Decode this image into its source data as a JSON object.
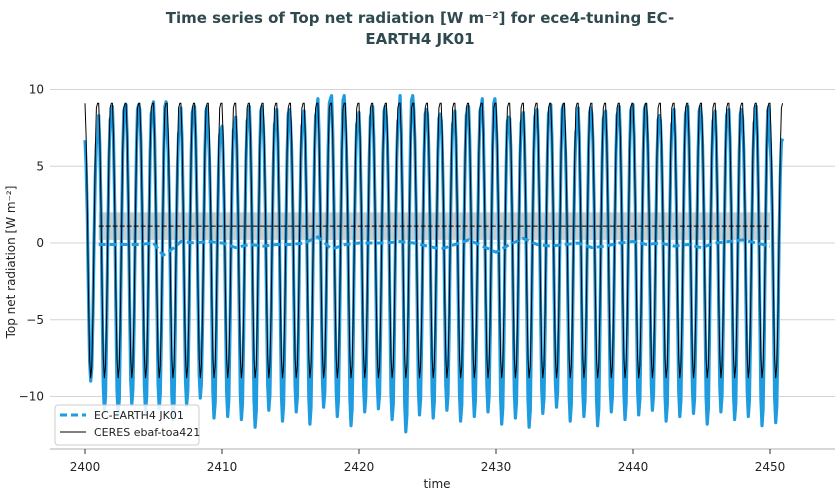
{
  "chart_data": {
    "type": "line",
    "title": "Time series of Top net radiation [W m⁻²] for ece4-tuning EC-EARTH4 JK01",
    "title_line1": "Time series of Top net radiation [W m⁻²] for ece4-tuning EC-",
    "title_line2": "EARTH4 JK01",
    "xlabel": "time",
    "ylabel": "Top net radiation [W m⁻²]",
    "xlim": [
      2397.5,
      2453
    ],
    "ylim": [
      -13.4,
      11
    ],
    "xticks": [
      2400,
      2410,
      2420,
      2430,
      2440,
      2450
    ],
    "xtick_labels": [
      "2400",
      "2410",
      "2420",
      "2430",
      "2440",
      "2450"
    ],
    "yticks": [
      10,
      5,
      0,
      -5,
      -10
    ],
    "ytick_labels": [
      "10",
      "5",
      "0",
      "−5",
      "−10"
    ],
    "grid": "horizontal",
    "legend_position": "bottom-left",
    "legend": [
      "EC-EARTH4 JK01",
      "CERES ebaf-toa421"
    ],
    "colors": {
      "model": "#1f9be0",
      "ceres": "#000000",
      "ceres_band": "#cccccc",
      "title": "#2f4a4f"
    },
    "monthly_climatology_ceres": [
      9.1,
      7.0,
      2.5,
      -3.0,
      -7.5,
      -8.8,
      -8.0,
      -4.5,
      0.5,
      6.0,
      8.8,
      9.1
    ],
    "series": [
      {
        "name": "EC-EARTH4 JK01",
        "style": "monthly solid + annual running mean dashed",
        "years": [
          2400,
          2401,
          2402,
          2403,
          2404,
          2405,
          2406,
          2407,
          2408,
          2409,
          2410,
          2411,
          2412,
          2413,
          2414,
          2415,
          2416,
          2417,
          2418,
          2419,
          2420,
          2421,
          2422,
          2423,
          2424,
          2425,
          2426,
          2427,
          2428,
          2429,
          2430,
          2431,
          2432,
          2433,
          2434,
          2435,
          2436,
          2437,
          2438,
          2439,
          2440,
          2441,
          2442,
          2443,
          2444,
          2445,
          2446,
          2447,
          2448,
          2449,
          2450
        ],
        "annual_max": [
          6.7,
          8.3,
          8.9,
          9.0,
          8.7,
          9.2,
          7.4,
          8.8,
          8.9,
          7.3,
          7.6,
          8.2,
          8.9,
          8.0,
          8.7,
          7.9,
          8.6,
          9.4,
          9.6,
          8.0,
          8.5,
          8.9,
          8.2,
          9.6,
          8.7,
          8.4,
          8.0,
          8.6,
          8.9,
          9.4,
          8.2,
          8.1,
          8.5,
          8.7,
          9.0,
          7.5,
          8.8,
          8.4,
          8.6,
          8.9,
          9.0,
          8.3,
          8.0,
          8.7,
          8.9,
          8.2,
          8.6,
          8.7,
          8.1,
          8.9,
          6.8
        ],
        "annual_min": [
          -9.0,
          -11.0,
          -11.2,
          -10.5,
          -11.0,
          -10.8,
          -11.5,
          -10.6,
          -10.1,
          -11.4,
          -11.3,
          -11.5,
          -12.0,
          -10.9,
          -11.6,
          -11.0,
          -11.8,
          -10.7,
          -11.3,
          -11.9,
          -11.0,
          -10.8,
          -11.5,
          -12.3,
          -11.2,
          -11.4,
          -10.9,
          -11.6,
          -11.3,
          -11.0,
          -11.8,
          -11.4,
          -12.0,
          -11.1,
          -10.7,
          -11.6,
          -11.3,
          -11.9,
          -11.0,
          -11.5,
          -11.2,
          -10.9,
          -11.6,
          -11.3,
          -11.1,
          -11.8,
          -11.0,
          -11.5,
          -11.3,
          -11.9,
          -11.7
        ],
        "running_mean_x": [
          2401,
          2402,
          2403,
          2404,
          2405,
          2405.7,
          2406.5,
          2407,
          2408,
          2409,
          2410,
          2411,
          2412,
          2413,
          2414,
          2415,
          2416,
          2417,
          2418,
          2419,
          2420,
          2421,
          2422,
          2423,
          2424,
          2425,
          2426,
          2427,
          2428,
          2429,
          2430,
          2431,
          2432,
          2433,
          2434,
          2435,
          2436,
          2437,
          2438,
          2439,
          2440,
          2441,
          2442,
          2443,
          2444,
          2445,
          2446,
          2447,
          2448,
          2449,
          2450
        ],
        "running_mean": [
          -0.1,
          -0.1,
          -0.1,
          -0.1,
          0.0,
          -0.8,
          -0.3,
          0.1,
          0.0,
          0.1,
          0.0,
          -0.3,
          -0.1,
          -0.2,
          -0.1,
          -0.1,
          0.0,
          0.4,
          -0.4,
          -0.1,
          0.0,
          0.0,
          0.0,
          0.1,
          0.0,
          -0.2,
          -0.4,
          -0.1,
          0.2,
          -0.2,
          -0.6,
          -0.1,
          0.3,
          -0.1,
          -0.2,
          -0.1,
          0.0,
          -0.3,
          -0.2,
          0.0,
          0.1,
          -0.1,
          0.0,
          -0.2,
          -0.1,
          -0.3,
          0.0,
          0.1,
          0.2,
          0.0,
          -0.2
        ]
      },
      {
        "name": "CERES ebaf-toa421",
        "style": "monthly climatology repeated + mean line with range band",
        "mean": 1.1,
        "band": [
          0.2,
          2.0
        ],
        "mean_x_range": [
          2401,
          2450
        ],
        "annual_max": 9.1,
        "annual_min": -8.8
      }
    ]
  }
}
